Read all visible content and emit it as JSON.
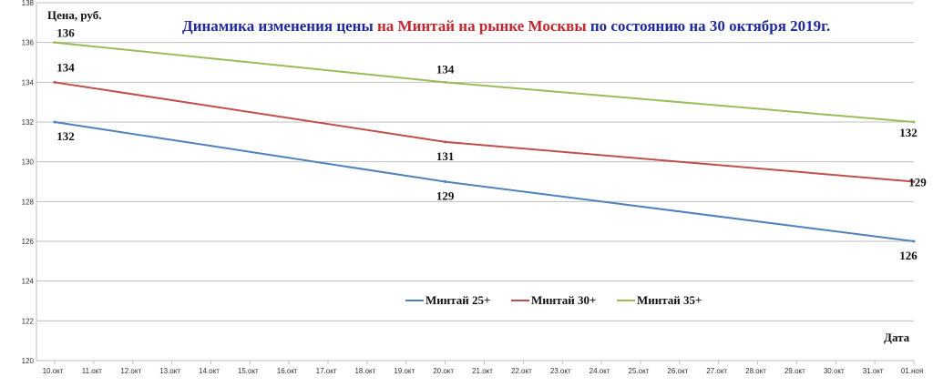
{
  "chart_data": {
    "type": "line",
    "title_parts": [
      {
        "text": "Динамика изменения цены ",
        "color": "#1f2a9c"
      },
      {
        "text": "на Минтай на рынке Москвы",
        "color": "#c0282d"
      },
      {
        "text": " по состоянию на 30 октября  2019г.",
        "color": "#1f2a9c"
      }
    ],
    "ylabel": "Цена, руб.",
    "xlabel": "Дата",
    "ylim": [
      120,
      138
    ],
    "yticks": [
      120,
      122,
      124,
      126,
      128,
      130,
      132,
      134,
      136,
      138
    ],
    "categories": [
      "10.окт",
      "11.окт",
      "12.окт",
      "13.окт",
      "14.окт",
      "15.окт",
      "16.окт",
      "17.окт",
      "18.окт",
      "19.окт",
      "20.окт",
      "21.окт",
      "22.окт",
      "23.окт",
      "24.окт",
      "25.окт",
      "26.окт",
      "27.окт",
      "28.окт",
      "29.окт",
      "30.окт",
      "31.окт",
      "01.ноя"
    ],
    "grid": true,
    "legend_position": "bottom-center",
    "series": [
      {
        "name": "Минтай  25+",
        "color": "#4f81bd",
        "points": [
          {
            "x_index": 0,
            "value": 132,
            "label": "132"
          },
          {
            "x_index": 10,
            "value": 129,
            "label": "129"
          },
          {
            "x_index": 22,
            "value": 126,
            "label": "126"
          }
        ]
      },
      {
        "name": "Минтай  30+",
        "color": "#c0504d",
        "points": [
          {
            "x_index": 0,
            "value": 134,
            "label": "134"
          },
          {
            "x_index": 10,
            "value": 131,
            "label": "131"
          },
          {
            "x_index": 22,
            "value": 129,
            "label": "129"
          }
        ]
      },
      {
        "name": "Минтай  35+",
        "color": "#9bbb59",
        "points": [
          {
            "x_index": 0,
            "value": 136,
            "label": "136"
          },
          {
            "x_index": 10,
            "value": 134,
            "label": "134"
          },
          {
            "x_index": 22,
            "value": 132,
            "label": "132"
          }
        ]
      }
    ]
  }
}
